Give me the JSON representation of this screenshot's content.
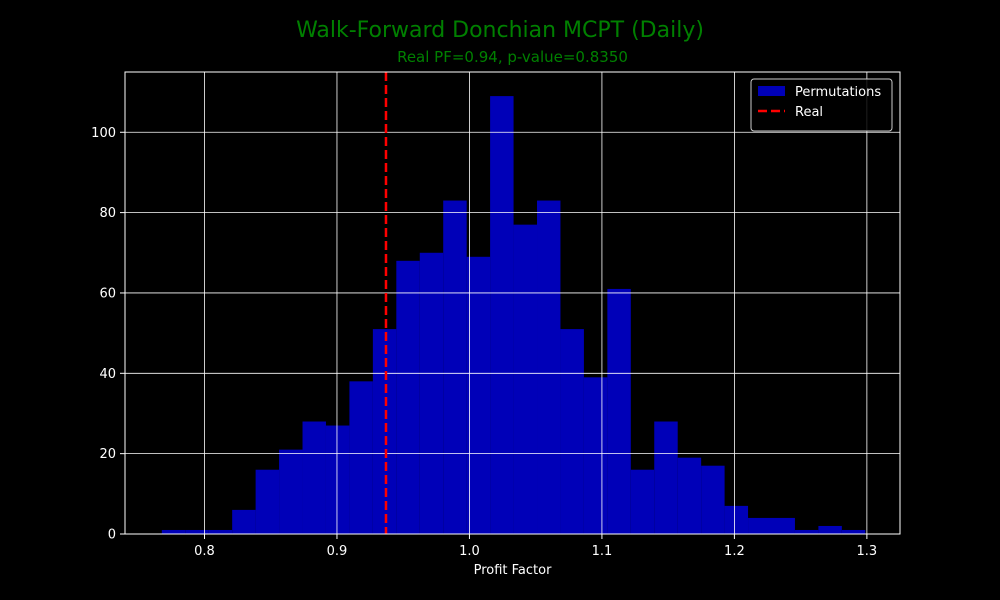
{
  "chart_data": {
    "type": "bar",
    "title": "Walk-Forward Donchian MCPT (Daily)",
    "subtitle": "Real PF=0.94, p-value=0.8350",
    "xlabel": "Profit Factor",
    "ylabel": "",
    "xlim": [
      0.74,
      1.325
    ],
    "ylim": [
      0,
      115
    ],
    "x_ticks": [
      0.8,
      0.9,
      1.0,
      1.1,
      1.2,
      1.3
    ],
    "x_tick_labels": [
      "0.8",
      "0.9",
      "1.0",
      "1.1",
      "1.2",
      "1.3"
    ],
    "y_ticks": [
      0,
      20,
      40,
      60,
      80,
      100
    ],
    "y_tick_labels": [
      "0",
      "20",
      "40",
      "60",
      "80",
      "100"
    ],
    "grid": true,
    "legend_position": "top-right",
    "series": [
      {
        "name": "Permutations",
        "kind": "histogram",
        "color": "#0000B8",
        "bins": [
          {
            "x0": 0.7678,
            "x1": 0.7855,
            "count": 1
          },
          {
            "x0": 0.7855,
            "x1": 0.8032,
            "count": 1
          },
          {
            "x0": 0.8032,
            "x1": 0.8209,
            "count": 1
          },
          {
            "x0": 0.8209,
            "x1": 0.8386,
            "count": 6
          },
          {
            "x0": 0.8386,
            "x1": 0.8563,
            "count": 16
          },
          {
            "x0": 0.8563,
            "x1": 0.874,
            "count": 21
          },
          {
            "x0": 0.874,
            "x1": 0.8917,
            "count": 28
          },
          {
            "x0": 0.8917,
            "x1": 0.9094,
            "count": 27
          },
          {
            "x0": 0.9094,
            "x1": 0.9271,
            "count": 38
          },
          {
            "x0": 0.9271,
            "x1": 0.9448,
            "count": 51
          },
          {
            "x0": 0.9448,
            "x1": 0.9625,
            "count": 68
          },
          {
            "x0": 0.9625,
            "x1": 0.9802,
            "count": 70
          },
          {
            "x0": 0.9802,
            "x1": 0.9979,
            "count": 83
          },
          {
            "x0": 0.9979,
            "x1": 1.0156,
            "count": 69
          },
          {
            "x0": 1.0156,
            "x1": 1.0333,
            "count": 109
          },
          {
            "x0": 1.0333,
            "x1": 1.051,
            "count": 77
          },
          {
            "x0": 1.051,
            "x1": 1.0687,
            "count": 83
          },
          {
            "x0": 1.0687,
            "x1": 1.0864,
            "count": 51
          },
          {
            "x0": 1.0864,
            "x1": 1.1041,
            "count": 39
          },
          {
            "x0": 1.1041,
            "x1": 1.1218,
            "count": 61
          },
          {
            "x0": 1.1218,
            "x1": 1.1395,
            "count": 16
          },
          {
            "x0": 1.1395,
            "x1": 1.1572,
            "count": 28
          },
          {
            "x0": 1.1572,
            "x1": 1.1749,
            "count": 19
          },
          {
            "x0": 1.1749,
            "x1": 1.1926,
            "count": 17
          },
          {
            "x0": 1.1926,
            "x1": 1.2103,
            "count": 7
          },
          {
            "x0": 1.2103,
            "x1": 1.228,
            "count": 4
          },
          {
            "x0": 1.228,
            "x1": 1.2457,
            "count": 4
          },
          {
            "x0": 1.2457,
            "x1": 1.2634,
            "count": 1
          },
          {
            "x0": 1.2634,
            "x1": 1.2811,
            "count": 2
          },
          {
            "x0": 1.2811,
            "x1": 1.2988,
            "count": 1
          }
        ]
      },
      {
        "name": "Real",
        "kind": "vline",
        "x": 0.937,
        "color": "#FF0000",
        "style": "dashed"
      }
    ]
  },
  "colors": {
    "background": "#000000",
    "title": "#008000",
    "text": "#FFFFFF",
    "grid": "#FFFFFF",
    "bar": "#0000B8",
    "real_line": "#FF0000"
  }
}
